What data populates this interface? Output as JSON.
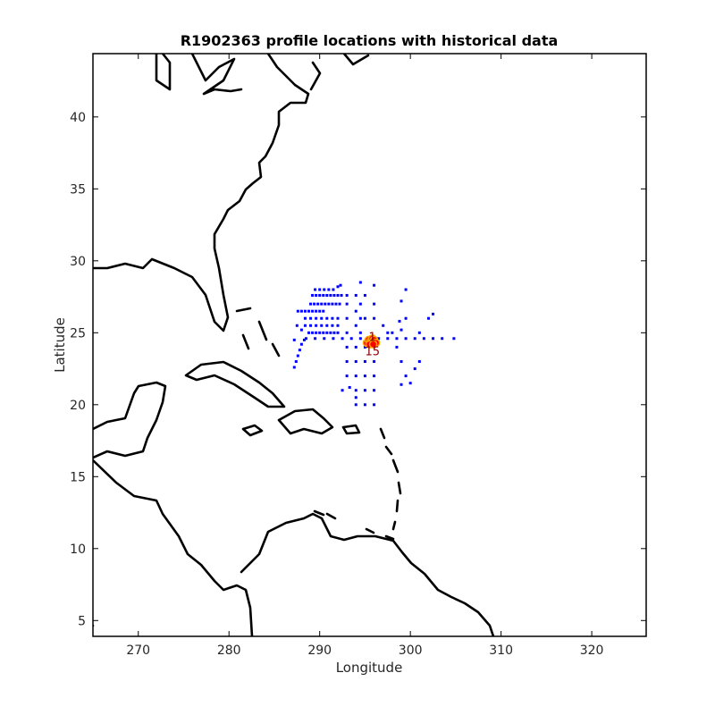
{
  "chart_data": {
    "type": "scatter",
    "title": "R1902363 profile locations with historical data",
    "xlabel": "Longitude",
    "ylabel": "Latitude",
    "xlim": [
      265,
      326
    ],
    "ylim": [
      3.9,
      44.4
    ],
    "xticks": [
      270,
      280,
      290,
      300,
      310,
      320
    ],
    "yticks": [
      5,
      10,
      15,
      20,
      25,
      30,
      35,
      40
    ],
    "grid": false,
    "legend": "none",
    "colors": {
      "historical": "#0000ff",
      "float_profiles": "#ff0000",
      "float_marker_outline": "#ffa500",
      "coastline": "#000000",
      "profile_label": "#8b0000"
    },
    "profile_labels": [
      "1",
      "15"
    ],
    "series": [
      {
        "points": [
          [
            287.2,
            22.6
          ],
          [
            287.4,
            23.0
          ],
          [
            287.6,
            23.4
          ],
          [
            287.8,
            23.8
          ],
          [
            288.0,
            24.2
          ],
          [
            288.3,
            24.5
          ],
          [
            288.0,
            25.2
          ],
          [
            287.5,
            25.5
          ],
          [
            287.2,
            24.5
          ],
          [
            287.6,
            26.5
          ],
          [
            288.0,
            26.5
          ],
          [
            288.4,
            26.5
          ],
          [
            288.8,
            26.5
          ],
          [
            289.2,
            26.5
          ],
          [
            289.6,
            26.5
          ],
          [
            290.0,
            26.5
          ],
          [
            290.4,
            26.5
          ],
          [
            288.8,
            25.0
          ],
          [
            289.2,
            25.0
          ],
          [
            289.6,
            25.0
          ],
          [
            290.0,
            25.0
          ],
          [
            290.4,
            25.0
          ],
          [
            290.8,
            25.0
          ],
          [
            291.2,
            25.0
          ],
          [
            291.6,
            25.0
          ],
          [
            292.0,
            25.0
          ],
          [
            288.5,
            24.6
          ],
          [
            289.5,
            24.6
          ],
          [
            290.5,
            24.6
          ],
          [
            291.5,
            24.6
          ],
          [
            292.5,
            24.6
          ],
          [
            293.5,
            24.6
          ],
          [
            294.5,
            24.6
          ],
          [
            296.5,
            24.6
          ],
          [
            297.5,
            24.6
          ],
          [
            298.5,
            24.6
          ],
          [
            299.5,
            24.6
          ],
          [
            300.5,
            24.6
          ],
          [
            301.5,
            24.6
          ],
          [
            302.5,
            24.6
          ],
          [
            303.5,
            24.6
          ],
          [
            304.8,
            24.6
          ],
          [
            289.0,
            27.0
          ],
          [
            289.4,
            27.0
          ],
          [
            289.8,
            27.0
          ],
          [
            290.2,
            27.0
          ],
          [
            290.6,
            27.0
          ],
          [
            291.0,
            27.0
          ],
          [
            291.4,
            27.0
          ],
          [
            291.8,
            27.0
          ],
          [
            292.2,
            27.0
          ],
          [
            289.2,
            27.6
          ],
          [
            289.6,
            27.6
          ],
          [
            290.0,
            27.6
          ],
          [
            290.4,
            27.6
          ],
          [
            290.8,
            27.6
          ],
          [
            291.2,
            27.6
          ],
          [
            291.6,
            27.6
          ],
          [
            292.0,
            27.6
          ],
          [
            292.4,
            27.6
          ],
          [
            293.0,
            27.6
          ],
          [
            294.0,
            27.6
          ],
          [
            295.0,
            27.6
          ],
          [
            289.5,
            28.0
          ],
          [
            290.0,
            28.0
          ],
          [
            290.5,
            28.0
          ],
          [
            291.0,
            28.0
          ],
          [
            291.5,
            28.0
          ],
          [
            292.0,
            28.2
          ],
          [
            292.3,
            28.3
          ],
          [
            289.6,
            26.0
          ],
          [
            289.6,
            25.5
          ],
          [
            290.2,
            26.0
          ],
          [
            290.2,
            25.5
          ],
          [
            290.8,
            26.0
          ],
          [
            290.8,
            25.5
          ],
          [
            291.4,
            26.0
          ],
          [
            291.4,
            25.5
          ],
          [
            292.0,
            26.0
          ],
          [
            292.0,
            25.5
          ],
          [
            289.0,
            26.0
          ],
          [
            289.0,
            25.5
          ],
          [
            288.4,
            26.0
          ],
          [
            288.4,
            25.5
          ],
          [
            293.0,
            27.0
          ],
          [
            293.0,
            26.0
          ],
          [
            293.0,
            25.0
          ],
          [
            293.0,
            24.0
          ],
          [
            293.0,
            23.0
          ],
          [
            293.0,
            22.0
          ],
          [
            294.0,
            26.5
          ],
          [
            294.0,
            25.5
          ],
          [
            294.0,
            24.0
          ],
          [
            294.0,
            23.0
          ],
          [
            294.0,
            22.0
          ],
          [
            294.0,
            21.0
          ],
          [
            294.0,
            20.5
          ],
          [
            294.0,
            20.0
          ],
          [
            294.5,
            28.5
          ],
          [
            294.5,
            27.0
          ],
          [
            294.5,
            26.0
          ],
          [
            294.5,
            25.0
          ],
          [
            295.0,
            26.0
          ],
          [
            295.0,
            24.0
          ],
          [
            295.0,
            23.0
          ],
          [
            295.0,
            22.0
          ],
          [
            295.0,
            21.0
          ],
          [
            295.0,
            20.0
          ],
          [
            296.0,
            28.3
          ],
          [
            296.0,
            27.0
          ],
          [
            296.0,
            26.0
          ],
          [
            296.0,
            24.0
          ],
          [
            296.0,
            23.0
          ],
          [
            296.0,
            22.0
          ],
          [
            296.0,
            21.0
          ],
          [
            296.0,
            20.0
          ],
          [
            292.5,
            21.0
          ],
          [
            293.3,
            21.2
          ],
          [
            297.0,
            25.5
          ],
          [
            298.0,
            25.0
          ],
          [
            299.0,
            25.2
          ],
          [
            299.5,
            26.0
          ],
          [
            299.5,
            28.0
          ],
          [
            299.0,
            27.2
          ],
          [
            301.0,
            25.0
          ],
          [
            302.0,
            26.0
          ],
          [
            302.5,
            26.3
          ],
          [
            298.5,
            24.0
          ],
          [
            299.0,
            23.0
          ],
          [
            299.5,
            22.0
          ],
          [
            300.0,
            21.5
          ],
          [
            300.5,
            22.5
          ],
          [
            301.0,
            23.0
          ],
          [
            299.0,
            21.4
          ],
          [
            297.5,
            25.0
          ],
          [
            298.8,
            25.8
          ]
        ]
      },
      {
        "points": [
          [
            295.2,
            24.3
          ],
          [
            295.4,
            24.5
          ],
          [
            295.6,
            24.4
          ],
          [
            295.8,
            24.6
          ],
          [
            296.0,
            24.5
          ],
          [
            296.2,
            24.3
          ],
          [
            295.5,
            24.2
          ],
          [
            295.9,
            24.2
          ]
        ]
      }
    ]
  }
}
